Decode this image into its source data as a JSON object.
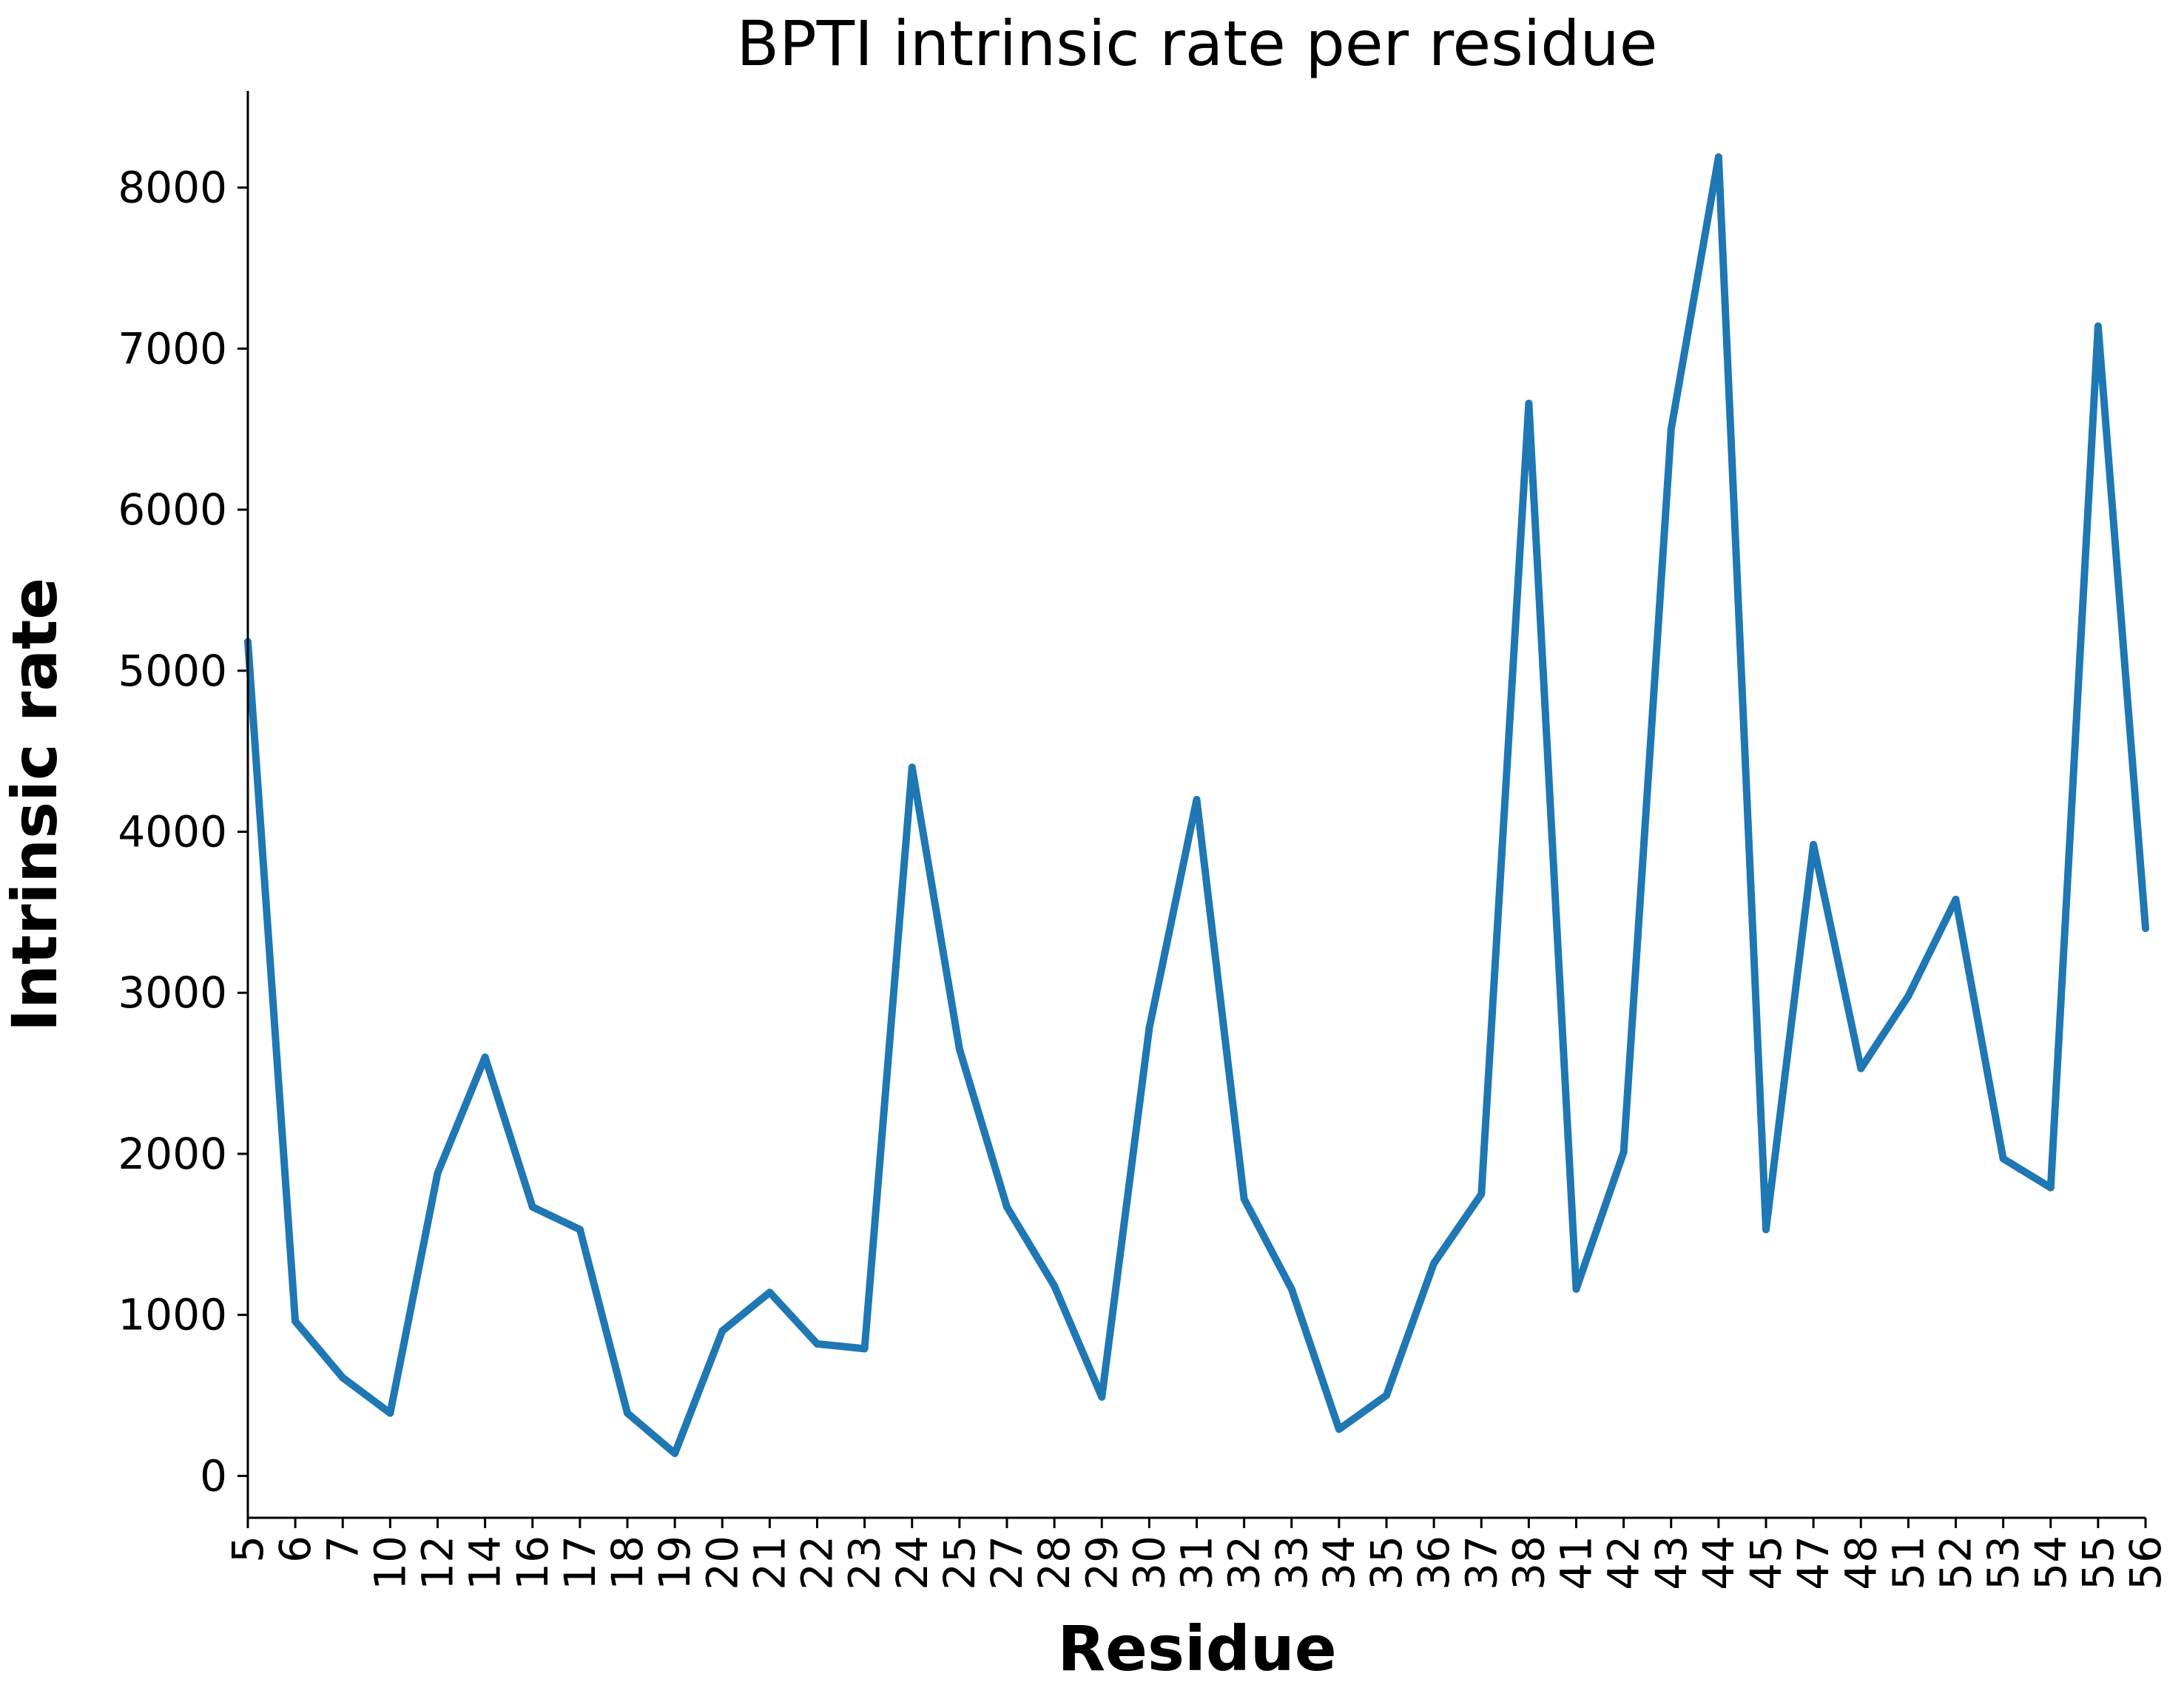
{
  "chart_data": {
    "type": "line",
    "title": "BPTI intrinsic rate per residue",
    "xlabel": "Residue",
    "ylabel": "Intrinsic rate",
    "categories": [
      "5",
      "6",
      "7",
      "10",
      "12",
      "14",
      "16",
      "17",
      "18",
      "19",
      "20",
      "21",
      "22",
      "23",
      "24",
      "25",
      "27",
      "28",
      "29",
      "30",
      "31",
      "32",
      "33",
      "34",
      "35",
      "36",
      "37",
      "38",
      "41",
      "42",
      "43",
      "44",
      "45",
      "47",
      "48",
      "51",
      "52",
      "53",
      "54",
      "55",
      "56"
    ],
    "series": [
      {
        "name": "",
        "color": "#1f77b4",
        "values": [
          5180,
          960,
          610,
          390,
          1880,
          2600,
          1670,
          1530,
          390,
          140,
          900,
          1140,
          820,
          790,
          4400,
          2650,
          1670,
          1180,
          490,
          2780,
          4200,
          1720,
          1160,
          290,
          500,
          1320,
          1750,
          6660,
          1160,
          2010,
          6500,
          8190,
          1530,
          3920,
          2530,
          2980,
          3580,
          1970,
          1790,
          7140,
          3400
        ]
      }
    ],
    "yticks": [
      0,
      1000,
      2000,
      3000,
      4000,
      5000,
      6000,
      7000,
      8000
    ],
    "ylim": [
      -260,
      8600
    ],
    "grid": false,
    "legend": "none"
  }
}
